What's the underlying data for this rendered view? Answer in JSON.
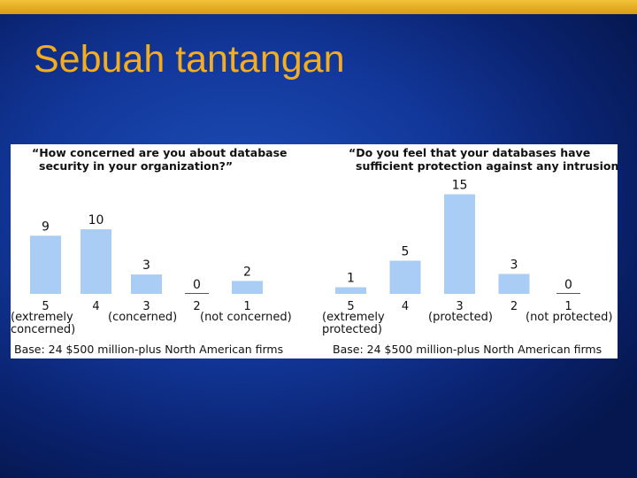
{
  "slide": {
    "title": "Sebuah tantangan",
    "accent_color": "#f3ad1f",
    "background_color": "#12379a"
  },
  "chart_data": [
    {
      "type": "bar",
      "title_lines": [
        "“How concerned are you about database",
        "security in your organization?”"
      ],
      "categories": [
        "5",
        "4",
        "3",
        "2",
        "1"
      ],
      "values": [
        9,
        10,
        3,
        0,
        2
      ],
      "descriptors": [
        {
          "category_index": 0,
          "lines": [
            "(extremely",
            "concerned)"
          ]
        },
        {
          "category_index": 2,
          "lines": [
            "(concerned)"
          ]
        },
        {
          "category_index": 4,
          "lines": [
            "(not concerned)"
          ]
        }
      ],
      "base_text": "Base: 24 $500 million-plus North American firms",
      "bar_color": "#a9cdf4"
    },
    {
      "type": "bar",
      "title_lines": [
        "“Do you feel that your databases have",
        "sufficient protection against any intrusion?”"
      ],
      "categories": [
        "5",
        "4",
        "3",
        "2",
        "1"
      ],
      "values": [
        1,
        5,
        15,
        3,
        0
      ],
      "descriptors": [
        {
          "category_index": 0,
          "lines": [
            "(extremely",
            "protected)"
          ]
        },
        {
          "category_index": 2,
          "lines": [
            "(protected)"
          ]
        },
        {
          "category_index": 4,
          "lines": [
            "(not protected)"
          ]
        }
      ],
      "base_text": "Base: 24 $500 million-plus North American firms",
      "bar_color": "#a9cdf4"
    }
  ]
}
